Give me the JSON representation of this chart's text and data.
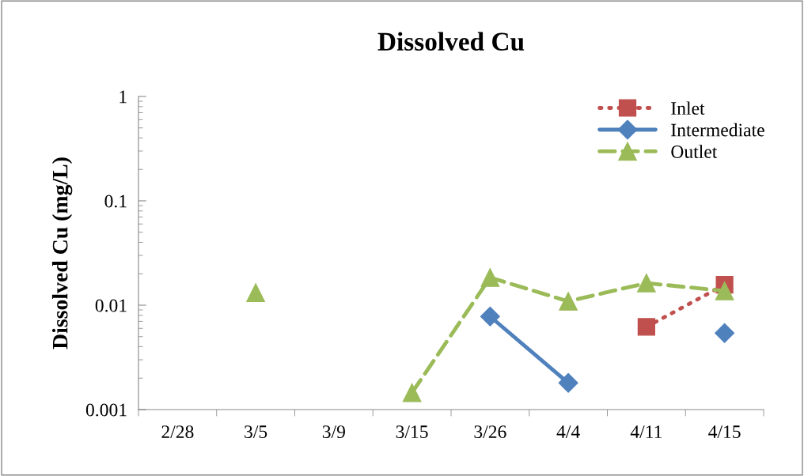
{
  "chart_data": {
    "type": "line",
    "title": "Dissolved Cu",
    "ylabel": "Dissolved Cu (mg/L)",
    "categories": [
      "2/28",
      "3/5",
      "3/9",
      "3/15",
      "3/26",
      "4/4",
      "4/11",
      "4/15"
    ],
    "series": [
      {
        "name": "Inlet",
        "color": "#c0504d",
        "marker": "square",
        "line_style": "dotted",
        "values": [
          null,
          null,
          null,
          null,
          null,
          null,
          0.0062,
          0.0157
        ]
      },
      {
        "name": "Intermediate",
        "color": "#4f81bd",
        "marker": "diamond",
        "line_style": "solid",
        "values": [
          null,
          null,
          null,
          null,
          0.0078,
          0.0018,
          null,
          0.0054
        ]
      },
      {
        "name": "Outlet",
        "color": "#9bbb59",
        "marker": "triangle",
        "line_style": "dashed",
        "values": [
          null,
          0.0132,
          null,
          0.00145,
          0.0184,
          0.0109,
          0.0163,
          0.0137
        ]
      }
    ],
    "log": "y",
    "ylim": [
      0.001,
      1
    ],
    "yticks": [
      0.001,
      0.01,
      0.1,
      1
    ],
    "grid": false,
    "legend": "top right"
  }
}
